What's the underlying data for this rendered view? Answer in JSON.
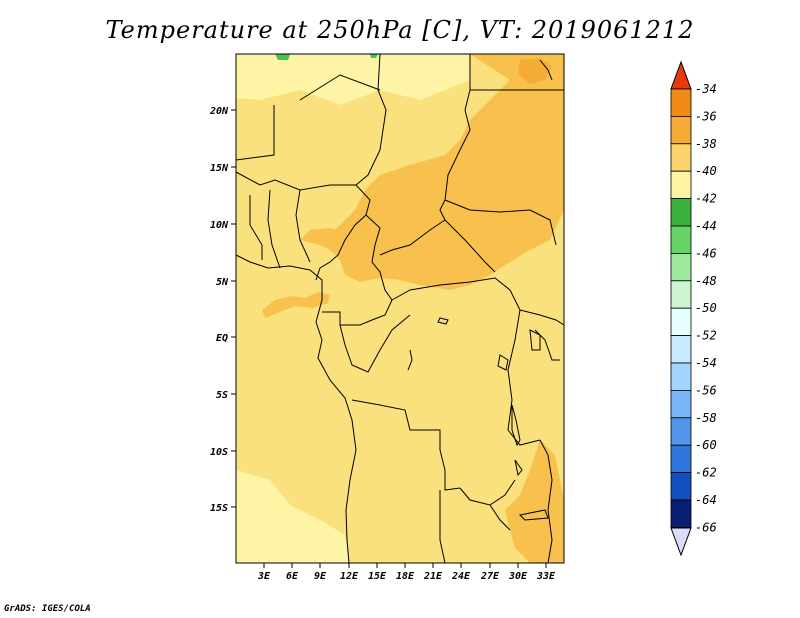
{
  "title": "Temperature at 250hPa [C], VT: 2019061212",
  "credit": "GrADS: IGES/COLA",
  "map": {
    "lat_ticks": [
      "20N",
      "15N",
      "10N",
      "5N",
      "EQ",
      "5S",
      "10S",
      "15S"
    ],
    "lon_ticks": [
      "3E",
      "6E",
      "9E",
      "12E",
      "15E",
      "18E",
      "21E",
      "24E",
      "27E",
      "30E",
      "33E"
    ]
  },
  "colorbar": {
    "labels": [
      "-34",
      "-36",
      "-38",
      "-40",
      "-42",
      "-44",
      "-46",
      "-48",
      "-50",
      "-52",
      "-54",
      "-56",
      "-58",
      "-60",
      "-62",
      "-64",
      "-66"
    ],
    "colors": [
      "#f4661d",
      "#f08a12",
      "#f5ac35",
      "#fad46b",
      "#fcf4a3",
      "#3cb23c",
      "#66d466",
      "#9fea9f",
      "#cdf5d1",
      "#e6ffff",
      "#c8eaff",
      "#a3d4fb",
      "#7ab6f5",
      "#5296ea",
      "#2f75dc",
      "#1250c2",
      "#0a1e74"
    ],
    "top_arrow_color": "#e8390d",
    "bottom_arrow_color": "#dcdcf8"
  },
  "field_colors": {
    "level_40": "#fbe17e",
    "level_38": "#f8c14d",
    "level_42": "#fdf4a6",
    "level_44": "#4fbf4f"
  }
}
